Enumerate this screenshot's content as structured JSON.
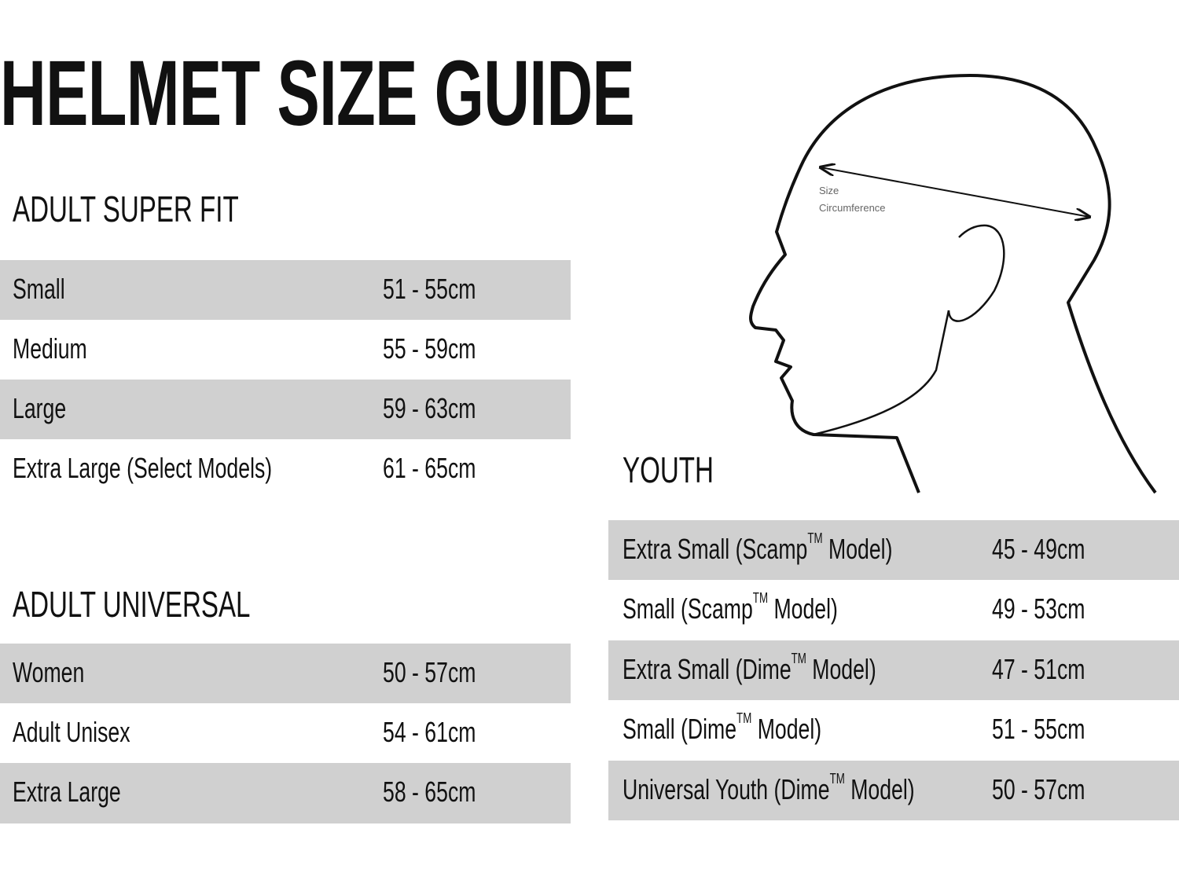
{
  "title": "HELMET SIZE GUIDE",
  "diagram": {
    "label_line1": "Size",
    "label_line2": "Circumference"
  },
  "adult_super_fit": {
    "heading": "ADULT SUPER FIT",
    "rows": [
      {
        "label": "Small",
        "range": "51 - 55cm"
      },
      {
        "label": "Medium",
        "range": "55 - 59cm"
      },
      {
        "label": "Large",
        "range": "59 - 63cm"
      },
      {
        "label": "Extra Large (Select Models)",
        "range": "61 - 65cm"
      }
    ]
  },
  "adult_universal": {
    "heading": "ADULT UNIVERSAL",
    "rows": [
      {
        "label": "Women",
        "range": "50 - 57cm"
      },
      {
        "label": "Adult Unisex",
        "range": "54 - 61cm"
      },
      {
        "label": "Extra Large",
        "range": "58 - 65cm"
      }
    ]
  },
  "youth": {
    "heading": "YOUTH",
    "rows": [
      {
        "label_before": "Extra Small (Scamp",
        "sup": "TM",
        "label_after": " Model)",
        "range": "45 - 49cm"
      },
      {
        "label_before": "Small (Scamp",
        "sup": "TM",
        "label_after": " Model)",
        "range": "49 - 53cm"
      },
      {
        "label_before": "Extra Small (Dime",
        "sup": "TM",
        "label_after": " Model)",
        "range": "47 - 51cm"
      },
      {
        "label_before": "Small (Dime",
        "sup": "TM",
        "label_after": " Model)",
        "range": "51 - 55cm"
      },
      {
        "label_before": "Universal Youth (Dime",
        "sup": "TM",
        "label_after": " Model)",
        "range": "50 - 57cm"
      }
    ]
  },
  "colors": {
    "row_shade": "#d0d0d0",
    "text": "#111111",
    "diagram_label": "#666666"
  }
}
